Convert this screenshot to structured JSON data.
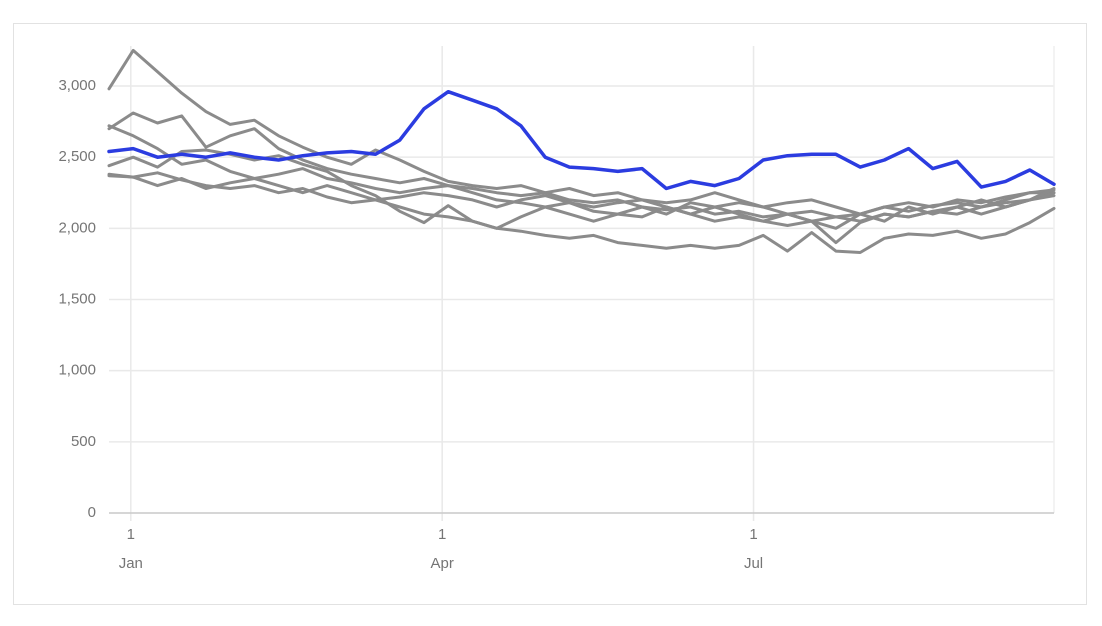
{
  "card": {
    "background": "#ffffff",
    "border_color": "#e2e2e2"
  },
  "chart_data": {
    "type": "line",
    "title": "",
    "xlabel": "",
    "ylabel": "",
    "legend": "none",
    "grid": true,
    "x_unit": "week",
    "x_points": 40,
    "ylim": [
      0,
      3281
    ],
    "y_ticks": [
      {
        "value": 0,
        "label": "0"
      },
      {
        "value": 500,
        "label": "500"
      },
      {
        "value": 1000,
        "label": "1,000"
      },
      {
        "value": 1500,
        "label": "1,500"
      },
      {
        "value": 2000,
        "label": "2,000"
      },
      {
        "value": 2500,
        "label": "2,500"
      },
      {
        "value": 3000,
        "label": "3,000"
      }
    ],
    "x_ticks": [
      {
        "day": "1",
        "month": "Jan",
        "week_pos": 0.9
      },
      {
        "day": "1",
        "month": "Apr",
        "week_pos": 13.75
      },
      {
        "day": "1",
        "month": "Jul",
        "week_pos": 26.6
      }
    ],
    "colors": {
      "grid": "#e9e9e9",
      "axis": "#c9c9c9",
      "tick_label": "#757575",
      "gray_series": "#8b8b8b",
      "blue_series": "#2b3ce0"
    },
    "series": [
      {
        "name": "gray-1",
        "color": "#8b8b8b",
        "width": 3,
        "values": [
          2980,
          3250,
          3100,
          2950,
          2820,
          2730,
          2760,
          2650,
          2570,
          2500,
          2450,
          2550,
          2480,
          2400,
          2330,
          2300,
          2280,
          2300,
          2250,
          2280,
          2230,
          2250,
          2200,
          2180,
          2200,
          2250,
          2200,
          2150,
          2180,
          2200,
          2150,
          2100,
          2150,
          2180,
          2150,
          2200,
          2180,
          2220,
          2250,
          2270
        ]
      },
      {
        "name": "gray-2",
        "color": "#8b8b8b",
        "width": 3,
        "values": [
          2700,
          2810,
          2740,
          2790,
          2570,
          2650,
          2700,
          2560,
          2480,
          2420,
          2380,
          2350,
          2320,
          2350,
          2300,
          2280,
          2250,
          2230,
          2250,
          2200,
          2180,
          2200,
          2150,
          2130,
          2150,
          2100,
          2120,
          2080,
          2100,
          2120,
          2080,
          2100,
          2150,
          2120,
          2160,
          2180,
          2150,
          2200,
          2250,
          2250
        ]
      },
      {
        "name": "gray-3",
        "color": "#8b8b8b",
        "width": 3,
        "values": [
          2720,
          2650,
          2560,
          2450,
          2480,
          2400,
          2350,
          2380,
          2420,
          2350,
          2320,
          2280,
          2250,
          2280,
          2300,
          2250,
          2200,
          2180,
          2150,
          2180,
          2120,
          2100,
          2080,
          2150,
          2100,
          2050,
          2080,
          2050,
          2020,
          2050,
          2080,
          2050,
          2100,
          2080,
          2120,
          2100,
          2150,
          2180,
          2200,
          2230
        ]
      },
      {
        "name": "gray-4",
        "color": "#8b8b8b",
        "width": 3,
        "values": [
          2440,
          2500,
          2430,
          2540,
          2550,
          2520,
          2480,
          2510,
          2450,
          2400,
          2300,
          2230,
          2120,
          2040,
          2160,
          2050,
          2000,
          2080,
          2150,
          2100,
          2050,
          2100,
          2150,
          2100,
          2180,
          2150,
          2100,
          2050,
          2100,
          2050,
          2000,
          2100,
          2050,
          2150,
          2100,
          2150,
          2200,
          2150,
          2200,
          2250
        ]
      },
      {
        "name": "gray-5",
        "color": "#8b8b8b",
        "width": 3,
        "values": [
          2380,
          2360,
          2300,
          2350,
          2280,
          2320,
          2350,
          2300,
          2250,
          2300,
          2250,
          2200,
          2220,
          2250,
          2230,
          2200,
          2150,
          2200,
          2230,
          2180,
          2150,
          2180,
          2200,
          2150,
          2100,
          2150,
          2180,
          2150,
          2100,
          2050,
          1900,
          2040,
          2100,
          2080,
          2120,
          2150,
          2100,
          2150,
          2200,
          2280
        ]
      },
      {
        "name": "gray-6",
        "color": "#8b8b8b",
        "width": 3,
        "values": [
          2370,
          2360,
          2390,
          2340,
          2300,
          2280,
          2300,
          2250,
          2280,
          2220,
          2180,
          2200,
          2150,
          2100,
          2080,
          2050,
          2000,
          1980,
          1950,
          1930,
          1950,
          1900,
          1880,
          1860,
          1880,
          1860,
          1880,
          1950,
          1840,
          1970,
          1840,
          1830,
          1930,
          1960,
          1950,
          1980,
          1930,
          1960,
          2040,
          2140
        ]
      },
      {
        "name": "highlight-blue",
        "color": "#2b3ce0",
        "width": 3.5,
        "values": [
          2540,
          2560,
          2500,
          2520,
          2500,
          2530,
          2500,
          2480,
          2510,
          2530,
          2540,
          2520,
          2620,
          2840,
          2960,
          2900,
          2840,
          2720,
          2500,
          2430,
          2420,
          2400,
          2420,
          2280,
          2330,
          2300,
          2350,
          2480,
          2510,
          2520,
          2520,
          2430,
          2480,
          2560,
          2420,
          2470,
          2290,
          2330,
          2410,
          2310
        ]
      }
    ]
  }
}
